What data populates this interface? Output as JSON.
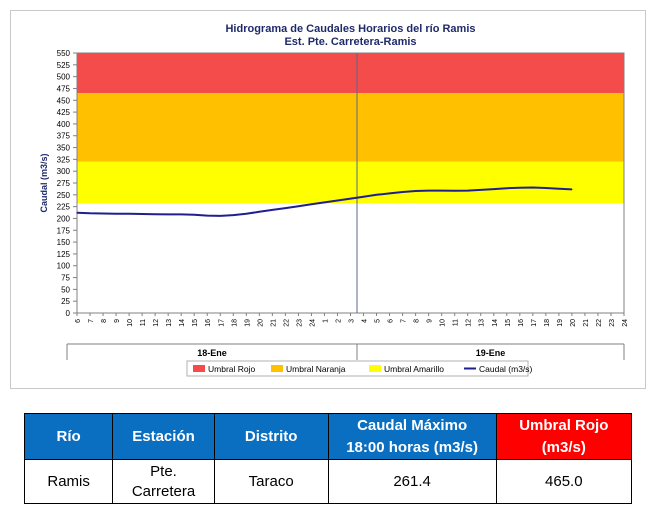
{
  "chart_data": {
    "type": "line",
    "title": "Hidrograma de Caudales Horarios del río Ramis",
    "subtitle": "Est. Pte. Carretera-Ramis",
    "ylabel": "Caudal  (m3/s)",
    "xlabel": "",
    "ylim": [
      0,
      550
    ],
    "yticks": [
      "0",
      "25",
      "50",
      "75",
      "100",
      "125",
      "150",
      "175",
      "200",
      "225",
      "250",
      "275",
      "300",
      "325",
      "350",
      "375",
      "400",
      "425",
      "450",
      "475",
      "500",
      "525",
      "550"
    ],
    "xticks": [
      "6",
      "7",
      "8",
      "9",
      "10",
      "11",
      "12",
      "13",
      "14",
      "15",
      "16",
      "17",
      "18",
      "19",
      "20",
      "21",
      "22",
      "23",
      "24",
      "1",
      "2",
      "3",
      "4",
      "5",
      "6",
      "7",
      "8",
      "9",
      "10",
      "11",
      "12",
      "13",
      "14",
      "15",
      "16",
      "17",
      "18",
      "19",
      "20",
      "21",
      "22",
      "23",
      "24"
    ],
    "day_labels": [
      "18-Ene",
      "19-Ene"
    ],
    "bands": [
      {
        "name": "Umbral Rojo",
        "from": 465,
        "to": 550,
        "color": "#f44b4b"
      },
      {
        "name": "Umbral Naranja",
        "from": 320,
        "to": 465,
        "color": "#ffc000"
      },
      {
        "name": "Umbral Amarillo",
        "from": 232,
        "to": 320,
        "color": "#ffff00"
      }
    ],
    "series": [
      {
        "name": "Caudal (m3/s)",
        "color": "#1f1f8f",
        "values": [
          212,
          211,
          210.5,
          210,
          210,
          209.5,
          209,
          208.5,
          208.5,
          208,
          206,
          205.5,
          207,
          210,
          214,
          218,
          222,
          226,
          230,
          234,
          238,
          242,
          246,
          250,
          253,
          256,
          258,
          259,
          259,
          258.5,
          259,
          260.5,
          262,
          264,
          265,
          265.5,
          264.5,
          263,
          261.4
        ]
      }
    ],
    "legend": [
      "Umbral Rojo",
      "Umbral Naranja",
      "Umbral Amarillo",
      "Caudal (m3/s)"
    ],
    "legend_position": "bottom",
    "grid": false
  },
  "table": {
    "headers": [
      "Río",
      "Estación",
      "Distrito",
      "Caudal Máximo",
      "18:00 horas (m3/s)",
      "Umbral Rojo",
      "(m3/s)"
    ],
    "row": [
      "Ramis",
      "Pte.",
      "Carretera",
      "Taraco",
      "261.4",
      "465.0"
    ],
    "colors": {
      "header_blue": "#0b6fc1",
      "header_red": "#ff0000"
    }
  }
}
